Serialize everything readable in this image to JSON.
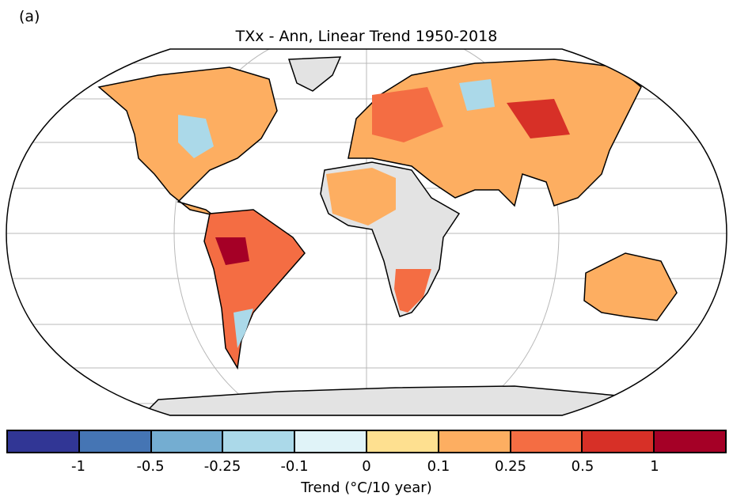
{
  "panel_label": "(a)",
  "title": "TXx - Ann, Linear Trend 1950-2018",
  "colorbar": {
    "label": "Trend (°C/10 year)",
    "ticks": [
      "-1",
      "-0.5",
      "-0.25",
      "-0.1",
      "0",
      "0.1",
      "0.25",
      "0.5",
      "1"
    ],
    "colors": [
      "#313695",
      "#4575b4",
      "#74add1",
      "#abd9e9",
      "#e0f3f8",
      "#fee090",
      "#fdae61",
      "#f46d43",
      "#d73027",
      "#a50026"
    ]
  },
  "colors": {
    "missing": "#e3e3e3",
    "grid": "#b0b0b0"
  }
}
